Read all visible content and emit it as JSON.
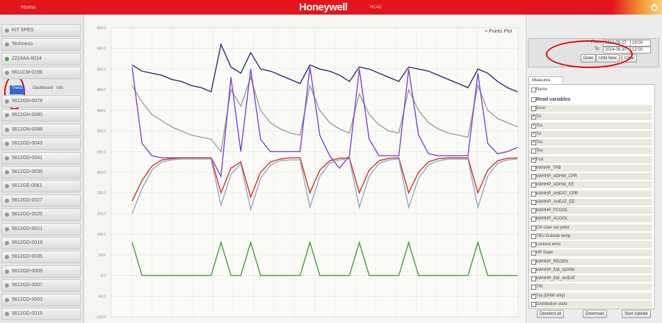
{
  "header": {
    "home": "Home",
    "brand": "Honeywell",
    "brand_sub": "HCAC"
  },
  "sidebar": {
    "items": [
      {
        "label": "KIT SPES",
        "ok": false
      },
      {
        "label": "Techneco",
        "ok": false
      },
      {
        "label": "2224AA-0014",
        "ok": true
      },
      {
        "label": "5611CM-0198",
        "ok": false
      }
    ],
    "tabs": [
      "Trend",
      "Dashboard",
      "Info"
    ],
    "devices": [
      "5612GN-0078",
      "5612GN-0080",
      "5612GN-0088",
      "5612GD-0043",
      "5612GD-0041",
      "5612GD-0039",
      "5612GE-0061",
      "5612GD-0027",
      "5612GD-0025",
      "5612GD-0021",
      "5612GD-0019",
      "5612GD-0035",
      "5612GD-0009",
      "5612GD-0007",
      "5612GD-0003",
      "5612GD-0015"
    ]
  },
  "plot_link": "> Points Plot",
  "range": {
    "from_label": "From:",
    "from_date": "2014-09-27",
    "from_time": "19:00",
    "to_label": "To:",
    "to_date": "2014-09-30",
    "to_time": "12:00",
    "buttons": [
      "Draw",
      "Until Now",
      "Clear"
    ]
  },
  "measures": {
    "tab": "Measures",
    "name_header": "Name",
    "group": "Read variables",
    "items": [
      {
        "label": "Error",
        "checked": false
      },
      {
        "label": "Tci",
        "checked": true
      },
      {
        "label": "Tcu",
        "checked": true
      },
      {
        "label": "Tcl",
        "checked": true
      },
      {
        "label": "Tcu",
        "checked": true
      },
      {
        "label": "Teu",
        "checked": false
      },
      {
        "label": "Fcd",
        "checked": true
      },
      {
        "label": "kWhHP_TPB",
        "checked": false
      },
      {
        "label": "kWHHP_ADHW_CPR",
        "checked": false
      },
      {
        "label": "kWHHP_ADHW_EE",
        "checked": false
      },
      {
        "label": "kWHHP_AHEAT_CPR",
        "checked": false
      },
      {
        "label": "kWHHP_AHEAT_EE",
        "checked": false
      },
      {
        "label": "kWHHP_PCOOL",
        "checked": false
      },
      {
        "label": "kWHHP_ACOOL",
        "checked": false
      },
      {
        "label": "CH User set point",
        "checked": false
      },
      {
        "label": "TBU Outside temp.",
        "checked": false
      },
      {
        "label": "Lockout error",
        "checked": false
      },
      {
        "label": "HP State",
        "checked": false
      },
      {
        "label": "kWHHP_REGEN",
        "checked": false
      },
      {
        "label": "kWHHP_EM_ADHW",
        "checked": false
      },
      {
        "label": "kWHHP_EM_AHEAT",
        "checked": false
      },
      {
        "label": "TRI",
        "checked": false
      },
      {
        "label": "Tra (DHW only)",
        "checked": true
      },
      {
        "label": "Distribution state",
        "checked": false
      }
    ],
    "buttons": [
      "Deselect all",
      "Download",
      "Start Update"
    ]
  },
  "chart_data": {
    "type": "line",
    "grid": true,
    "ylim": [
      -100,
      600
    ],
    "yticks": [
      {
        "value": 600,
        "label": "600.0"
      },
      {
        "value": 550,
        "label": "550.0"
      },
      {
        "value": 500,
        "label": "500.0"
      },
      {
        "value": 450,
        "label": "450.0"
      },
      {
        "value": 400,
        "label": "400.0"
      },
      {
        "value": 350,
        "label": "350.0"
      },
      {
        "value": 300,
        "label": "300.0"
      },
      {
        "value": 250,
        "label": "250.0"
      },
      {
        "value": 200,
        "label": "200.0"
      },
      {
        "value": 150,
        "label": "150.0"
      },
      {
        "value": 100,
        "label": "100.0"
      },
      {
        "value": 50,
        "label": "50.0"
      },
      {
        "value": 0,
        "label": "0.0"
      },
      {
        "value": -50,
        "label": "-50.0"
      },
      {
        "value": -100,
        "label": "-100.0"
      }
    ],
    "series": [
      {
        "color": "#1f2d6b",
        "values": [
          510,
          495,
          490,
          485,
          475,
          470,
          460,
          455,
          445,
          560,
          505,
          490,
          540,
          500,
          495,
          485,
          475,
          465,
          510,
          500,
          495,
          485,
          470,
          505,
          500,
          490,
          480,
          470,
          505,
          500,
          495,
          485,
          475,
          465,
          455,
          500,
          490,
          470,
          455,
          445
        ]
      },
      {
        "color": "#9a9a9a",
        "values": [
          460,
          420,
          390,
          375,
          360,
          350,
          340,
          335,
          330,
          300,
          450,
          410,
          480,
          400,
          370,
          355,
          345,
          340,
          460,
          400,
          370,
          355,
          345,
          440,
          390,
          365,
          350,
          345,
          450,
          400,
          370,
          355,
          345,
          340,
          335,
          460,
          400,
          380,
          370,
          360
        ]
      },
      {
        "color": "#7b3fcf",
        "values": [
          505,
          320,
          290,
          285,
          285,
          285,
          285,
          285,
          285,
          240,
          480,
          300,
          500,
          330,
          300,
          300,
          300,
          300,
          505,
          340,
          290,
          260,
          290,
          500,
          330,
          290,
          290,
          290,
          500,
          340,
          295,
          290,
          290,
          290,
          290,
          490,
          320,
          295,
          300,
          310
        ]
      },
      {
        "color": "#d22a1e",
        "values": [
          180,
          230,
          265,
          280,
          283,
          285,
          285,
          285,
          285,
          200,
          260,
          275,
          190,
          250,
          275,
          282,
          285,
          285,
          200,
          255,
          278,
          284,
          285,
          200,
          255,
          278,
          284,
          285,
          200,
          250,
          275,
          283,
          285,
          285,
          285,
          200,
          255,
          278,
          284,
          285
        ]
      },
      {
        "color": "#8ea6c8",
        "values": [
          150,
          210,
          255,
          275,
          280,
          282,
          282,
          282,
          282,
          170,
          245,
          270,
          160,
          235,
          268,
          278,
          280,
          280,
          165,
          240,
          272,
          280,
          282,
          165,
          240,
          272,
          280,
          282,
          165,
          235,
          268,
          278,
          282,
          282,
          282,
          165,
          240,
          272,
          280,
          282
        ]
      },
      {
        "color": "#3f9b2f",
        "values": [
          80,
          0,
          0,
          0,
          0,
          0,
          0,
          0,
          0,
          80,
          0,
          0,
          80,
          0,
          0,
          0,
          0,
          0,
          80,
          0,
          0,
          0,
          0,
          80,
          0,
          0,
          0,
          0,
          80,
          0,
          0,
          0,
          0,
          0,
          0,
          80,
          0,
          0,
          0,
          0
        ]
      }
    ]
  }
}
